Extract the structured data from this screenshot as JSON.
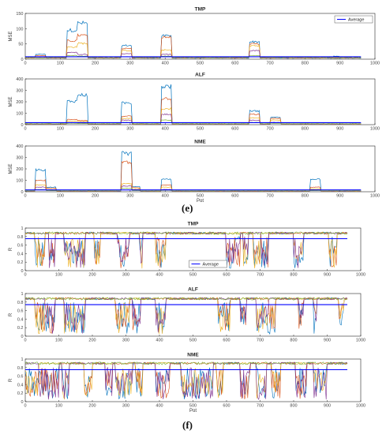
{
  "figure_labels": {
    "e": "(e)",
    "f": "(f)"
  },
  "legend_label": "Average",
  "colors": [
    "#0072BD",
    "#D95319",
    "#EDB120",
    "#7E2F8E",
    "#77AC30",
    "#4DBEEE",
    "#A2142F"
  ],
  "average_color": "#0000FF",
  "chart_data": [
    {
      "type": "line",
      "title": "TMP",
      "xlabel": "",
      "ylabel": "MSE",
      "xlim": [
        0,
        1000
      ],
      "ylim": [
        0,
        150
      ],
      "xticks": [
        0,
        100,
        200,
        300,
        400,
        500,
        600,
        700,
        800,
        900,
        1000
      ],
      "yticks": [
        0,
        50,
        100,
        150
      ],
      "x_extent": 960,
      "baseline": 6,
      "noise": 1.5,
      "average": 8,
      "legend": {
        "label": "Average",
        "placement": "top-right"
      },
      "blocks": [
        {
          "start": 30,
          "end": 60,
          "levels": [
            16,
            12,
            8,
            5,
            4
          ]
        },
        {
          "start": 120,
          "end": 150,
          "levels": [
            95,
            60,
            40,
            22,
            12
          ]
        },
        {
          "start": 150,
          "end": 180,
          "levels": [
            118,
            78,
            52,
            16,
            10
          ]
        },
        {
          "start": 275,
          "end": 305,
          "levels": [
            45,
            35,
            28,
            18,
            8
          ]
        },
        {
          "start": 390,
          "end": 420,
          "levels": [
            76,
            72,
            30,
            16,
            10
          ]
        },
        {
          "start": 640,
          "end": 670,
          "levels": [
            57,
            50,
            44,
            28,
            12
          ]
        },
        {
          "start": 880,
          "end": 900,
          "levels": [
            10,
            8,
            6,
            4,
            3
          ]
        }
      ]
    },
    {
      "type": "line",
      "title": "ALF",
      "xlabel": "",
      "ylabel": "MSE",
      "xlim": [
        0,
        1000
      ],
      "ylim": [
        0,
        400
      ],
      "xticks": [
        0,
        100,
        200,
        300,
        400,
        500,
        600,
        700,
        800,
        900,
        1000
      ],
      "yticks": [
        0,
        100,
        200,
        300,
        400
      ],
      "x_extent": 960,
      "baseline": 10,
      "noise": 2.5,
      "average": 18,
      "legend": null,
      "blocks": [
        {
          "start": 120,
          "end": 150,
          "levels": [
            205,
            45,
            30,
            18,
            12
          ]
        },
        {
          "start": 150,
          "end": 180,
          "levels": [
            260,
            35,
            28,
            15,
            10
          ]
        },
        {
          "start": 275,
          "end": 305,
          "levels": [
            190,
            75,
            55,
            40,
            20
          ]
        },
        {
          "start": 390,
          "end": 420,
          "levels": [
            335,
            230,
            140,
            90,
            40
          ]
        },
        {
          "start": 640,
          "end": 670,
          "levels": [
            120,
            90,
            60,
            40,
            20
          ]
        },
        {
          "start": 700,
          "end": 730,
          "levels": [
            65,
            55,
            40,
            20,
            12
          ]
        }
      ]
    },
    {
      "type": "line",
      "title": "NME",
      "xlabel": "Pot",
      "ylabel": "MSE",
      "xlim": [
        0,
        1000
      ],
      "ylim": [
        0,
        400
      ],
      "xticks": [
        0,
        100,
        200,
        300,
        400,
        500,
        600,
        700,
        800,
        900,
        1000
      ],
      "yticks": [
        0,
        100,
        200,
        300,
        400
      ],
      "x_extent": 960,
      "baseline": 10,
      "noise": 2.5,
      "average": 16,
      "legend": null,
      "blocks": [
        {
          "start": 30,
          "end": 60,
          "levels": [
            190,
            100,
            60,
            40,
            20
          ]
        },
        {
          "start": 60,
          "end": 90,
          "levels": [
            40,
            30,
            20,
            15,
            10
          ]
        },
        {
          "start": 275,
          "end": 305,
          "levels": [
            335,
            260,
            70,
            50,
            30
          ]
        },
        {
          "start": 305,
          "end": 330,
          "levels": [
            45,
            35,
            25,
            15,
            10
          ]
        },
        {
          "start": 390,
          "end": 420,
          "levels": [
            110,
            60,
            40,
            20,
            12
          ]
        },
        {
          "start": 815,
          "end": 845,
          "levels": [
            110,
            40,
            25,
            15,
            10
          ]
        }
      ]
    },
    {
      "type": "line",
      "title": "TMP",
      "xlabel": "",
      "ylabel": "R",
      "xlim": [
        0,
        1000
      ],
      "ylim": [
        0,
        1
      ],
      "xticks": [
        0,
        100,
        200,
        300,
        400,
        500,
        600,
        700,
        800,
        900,
        1000
      ],
      "yticks": [
        0,
        0.2,
        0.4,
        0.6,
        0.8,
        1
      ],
      "x_extent": 960,
      "high": 0.88,
      "average": 0.75,
      "legend": {
        "label": "Average",
        "placement": "bottom-center"
      },
      "drop_segments": [
        [
          30,
          60
        ],
        [
          70,
          90
        ],
        [
          115,
          180
        ],
        [
          205,
          225
        ],
        [
          275,
          310
        ],
        [
          340,
          350
        ],
        [
          390,
          420
        ],
        [
          600,
          640
        ],
        [
          650,
          665
        ],
        [
          680,
          700
        ],
        [
          705,
          725
        ],
        [
          800,
          830
        ],
        [
          905,
          930
        ]
      ]
    },
    {
      "type": "line",
      "title": "ALF",
      "xlabel": "",
      "ylabel": "R",
      "xlim": [
        0,
        1000
      ],
      "ylim": [
        0,
        1
      ],
      "xticks": [
        0,
        100,
        200,
        300,
        400,
        500,
        600,
        700,
        800,
        900,
        1000
      ],
      "yticks": [
        0,
        0.2,
        0.4,
        0.6,
        0.8,
        1
      ],
      "x_extent": 960,
      "high": 0.88,
      "average": 0.74,
      "legend": null,
      "drop_segments": [
        [
          30,
          60
        ],
        [
          60,
          90
        ],
        [
          115,
          180
        ],
        [
          270,
          310
        ],
        [
          320,
          345
        ],
        [
          390,
          420
        ],
        [
          575,
          610
        ],
        [
          640,
          660
        ],
        [
          690,
          725
        ],
        [
          725,
          745
        ],
        [
          815,
          830
        ],
        [
          860,
          870
        ],
        [
          935,
          950
        ]
      ]
    },
    {
      "type": "line",
      "title": "NME",
      "xlabel": "Pot",
      "ylabel": "R",
      "xlim": [
        0,
        1000
      ],
      "ylim": [
        0,
        1
      ],
      "xticks": [
        0,
        100,
        200,
        300,
        400,
        500,
        600,
        700,
        800,
        900,
        1000
      ],
      "yticks": [
        0,
        0.2,
        0.4,
        0.6,
        0.8,
        1
      ],
      "x_extent": 960,
      "high": 0.9,
      "average": 0.75,
      "legend": null,
      "drop_segments": [
        [
          0,
          40
        ],
        [
          40,
          100
        ],
        [
          110,
          130
        ],
        [
          175,
          200
        ],
        [
          240,
          260
        ],
        [
          270,
          320
        ],
        [
          330,
          350
        ],
        [
          390,
          430
        ],
        [
          465,
          560
        ],
        [
          570,
          590
        ],
        [
          640,
          670
        ],
        [
          690,
          720
        ],
        [
          735,
          760
        ],
        [
          805,
          840
        ],
        [
          860,
          900
        ]
      ]
    }
  ]
}
